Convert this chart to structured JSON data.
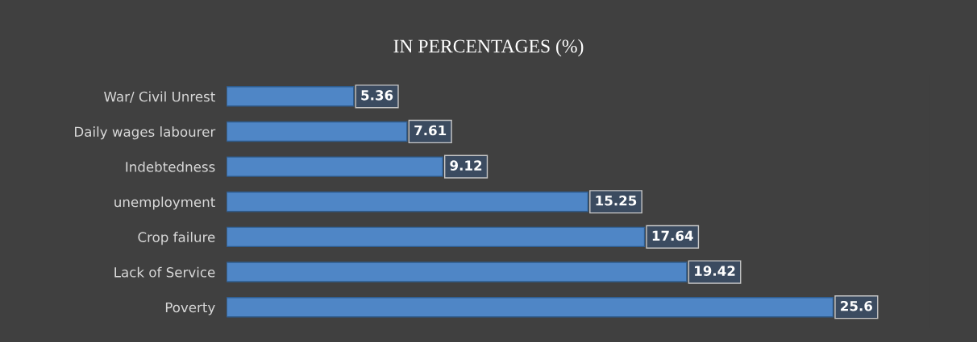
{
  "chart_data": {
    "type": "bar",
    "orientation": "horizontal",
    "title": "IN PERCENTAGES (%)",
    "categories": [
      "War/ Civil Unrest",
      "Daily wages labourer",
      "Indebtedness",
      "unemployment",
      "Crop failure",
      "Lack of Service",
      "Poverty"
    ],
    "values": [
      5.36,
      7.61,
      9.12,
      15.25,
      17.64,
      19.42,
      25.6
    ],
    "color": "#4f86c6",
    "data_labels": true,
    "grid": false,
    "legend": false
  }
}
